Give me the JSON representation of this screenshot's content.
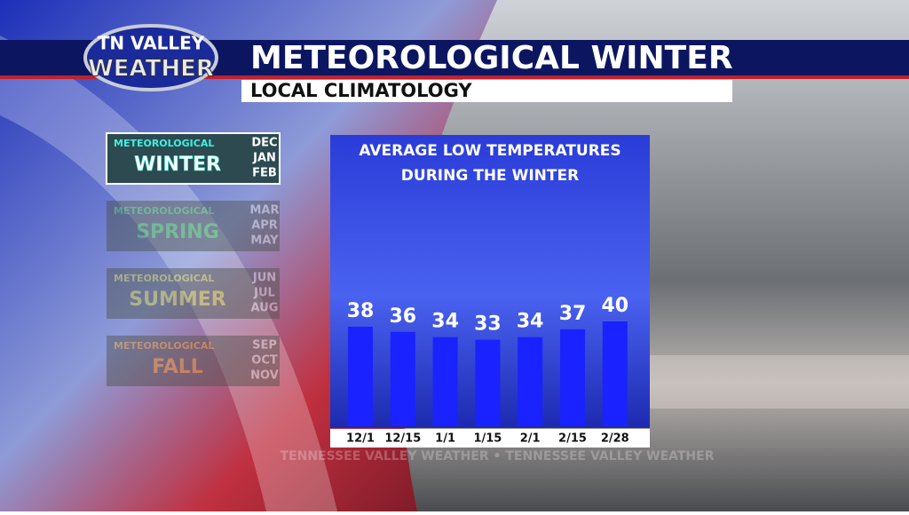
{
  "header": {
    "logo_line1": "TN VALLEY",
    "logo_line2": "WEATHER",
    "title": "METEOROLOGICAL WINTER",
    "subtitle": "LOCAL CLIMATOLOGY"
  },
  "seasons": [
    {
      "label": "METEOROLOGICAL",
      "name": "WINTER",
      "months": [
        "DEC",
        "JAN",
        "FEB"
      ],
      "color": "#3ff0e0"
    },
    {
      "label": "METEOROLOGICAL",
      "name": "SPRING",
      "months": [
        "MAR",
        "APR",
        "MAY"
      ],
      "color": "#44cc44"
    },
    {
      "label": "METEOROLOGICAL",
      "name": "SUMMER",
      "months": [
        "JUN",
        "JUL",
        "AUG"
      ],
      "color": "#d8d030"
    },
    {
      "label": "METEOROLOGICAL",
      "name": "FALL",
      "months": [
        "SEP",
        "OCT",
        "NOV"
      ],
      "color": "#f09a20"
    }
  ],
  "chart_data": {
    "type": "bar",
    "title": [
      "AVERAGE LOW TEMPERATURES",
      "DURING THE WINTER"
    ],
    "categories": [
      "12/1",
      "12/15",
      "1/1",
      "1/15",
      "2/1",
      "2/15",
      "2/28"
    ],
    "values": [
      38,
      36,
      34,
      33,
      34,
      37,
      40
    ],
    "color": "#1a22ff"
  },
  "footer": "TENNESSEE VALLEY WEATHER • TENNESSEE VALLEY WEATHER"
}
